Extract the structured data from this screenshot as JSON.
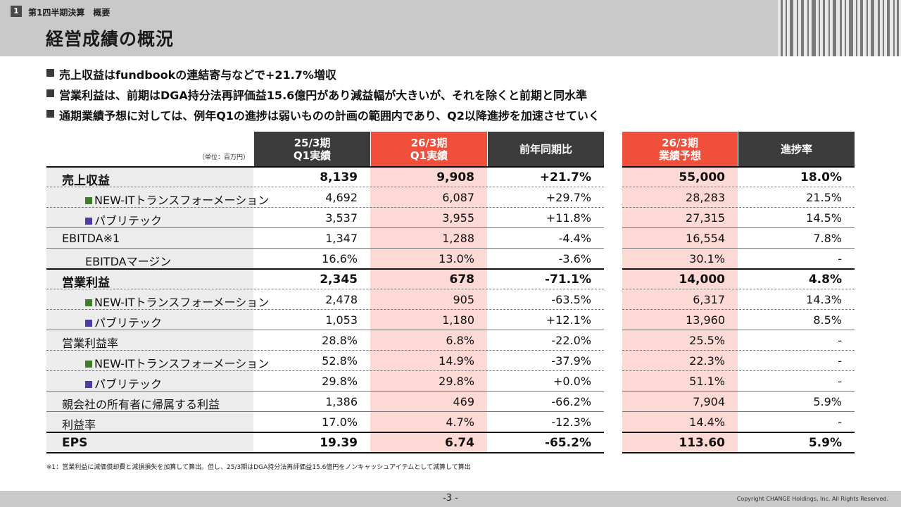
{
  "header": {
    "section_number": "1",
    "section_title": "第1四半期決算　概要",
    "page_title": "経営成績の概況"
  },
  "bullets": [
    "売上収益はfundbookの連結寄与などで+21.7%増収",
    "営業利益は、前期はDGA持分法再評価益15.6億円があり減益幅が大きいが、それを除くと前期と同水準",
    "通期業績予想に対しては、例年Q1の進捗は弱いものの計画の範囲内であり、Q2以降進捗を加速させていく"
  ],
  "table": {
    "unit": "（単位：百万円）",
    "headers": [
      {
        "line1": "25/3期",
        "line2": "Q1実績"
      },
      {
        "line1": "26/3期",
        "line2": "Q1実績"
      },
      {
        "line1": "前年同期比",
        "line2": ""
      },
      {
        "line1": "26/3期",
        "line2": "業績予想"
      },
      {
        "line1": "進捗率",
        "line2": ""
      }
    ],
    "rows": [
      {
        "label": "売上収益",
        "values": [
          "8,139",
          "9,908",
          "+21.7%",
          "55,000",
          "18.0%"
        ]
      },
      {
        "label": "NEW-ITトランスフォーメーション",
        "values": [
          "4,692",
          "6,087",
          "+29.7%",
          "28,283",
          "21.5%"
        ]
      },
      {
        "label": "パブリテック",
        "values": [
          "3,537",
          "3,955",
          "+11.8%",
          "27,315",
          "14.5%"
        ]
      },
      {
        "label": "EBITDA※1",
        "values": [
          "1,347",
          "1,288",
          "-4.4%",
          "16,554",
          "7.8%"
        ]
      },
      {
        "label": "EBITDAマージン",
        "values": [
          "16.6%",
          "13.0%",
          "-3.6%",
          "30.1%",
          "-"
        ]
      },
      {
        "label": "営業利益",
        "values": [
          "2,345",
          "678",
          "-71.1%",
          "14,000",
          "4.8%"
        ]
      },
      {
        "label": "NEW-ITトランスフォーメーション",
        "values": [
          "2,478",
          "905",
          "-63.5%",
          "6,317",
          "14.3%"
        ]
      },
      {
        "label": "パブリテック",
        "values": [
          "1,053",
          "1,180",
          "+12.1%",
          "13,960",
          "8.5%"
        ]
      },
      {
        "label": "営業利益率",
        "values": [
          "28.8%",
          "6.8%",
          "-22.0%",
          "25.5%",
          "-"
        ]
      },
      {
        "label": "NEW-ITトランスフォーメーション",
        "values": [
          "52.8%",
          "14.9%",
          "-37.9%",
          "22.3%",
          "-"
        ]
      },
      {
        "label": "パブリテック",
        "values": [
          "29.8%",
          "29.8%",
          "+0.0%",
          "51.1%",
          "-"
        ]
      },
      {
        "label": "親会社の所有者に帰属する利益",
        "values": [
          "1,386",
          "469",
          "-66.2%",
          "7,904",
          "5.9%"
        ]
      },
      {
        "label": "利益率",
        "values": [
          "17.0%",
          "4.7%",
          "-12.3%",
          "14.4%",
          "-"
        ]
      },
      {
        "label": "EPS",
        "values": [
          "19.39",
          "6.74",
          "-65.2%",
          "113.60",
          "5.9%"
        ]
      }
    ]
  },
  "footnote": "※1：営業利益に減価償却費と減損損失を加算して算出。但し、25/3期はDGA持分法再評価益15.6億円をノンキャッシュアイテムとして減算して算出",
  "footer": {
    "page_number": "-3 -",
    "copyright": "Copyright CHANGE Holdings, Inc. All Rights Reserved."
  },
  "colors": {
    "header_gray": "#c9c9c9",
    "dark_header": "#3b3b3b",
    "accent_red": "#ef4f3b",
    "highlight_pink": "#fdd9d5",
    "segment_green": "#3f7d2b",
    "segment_purple": "#4b3ca2"
  }
}
